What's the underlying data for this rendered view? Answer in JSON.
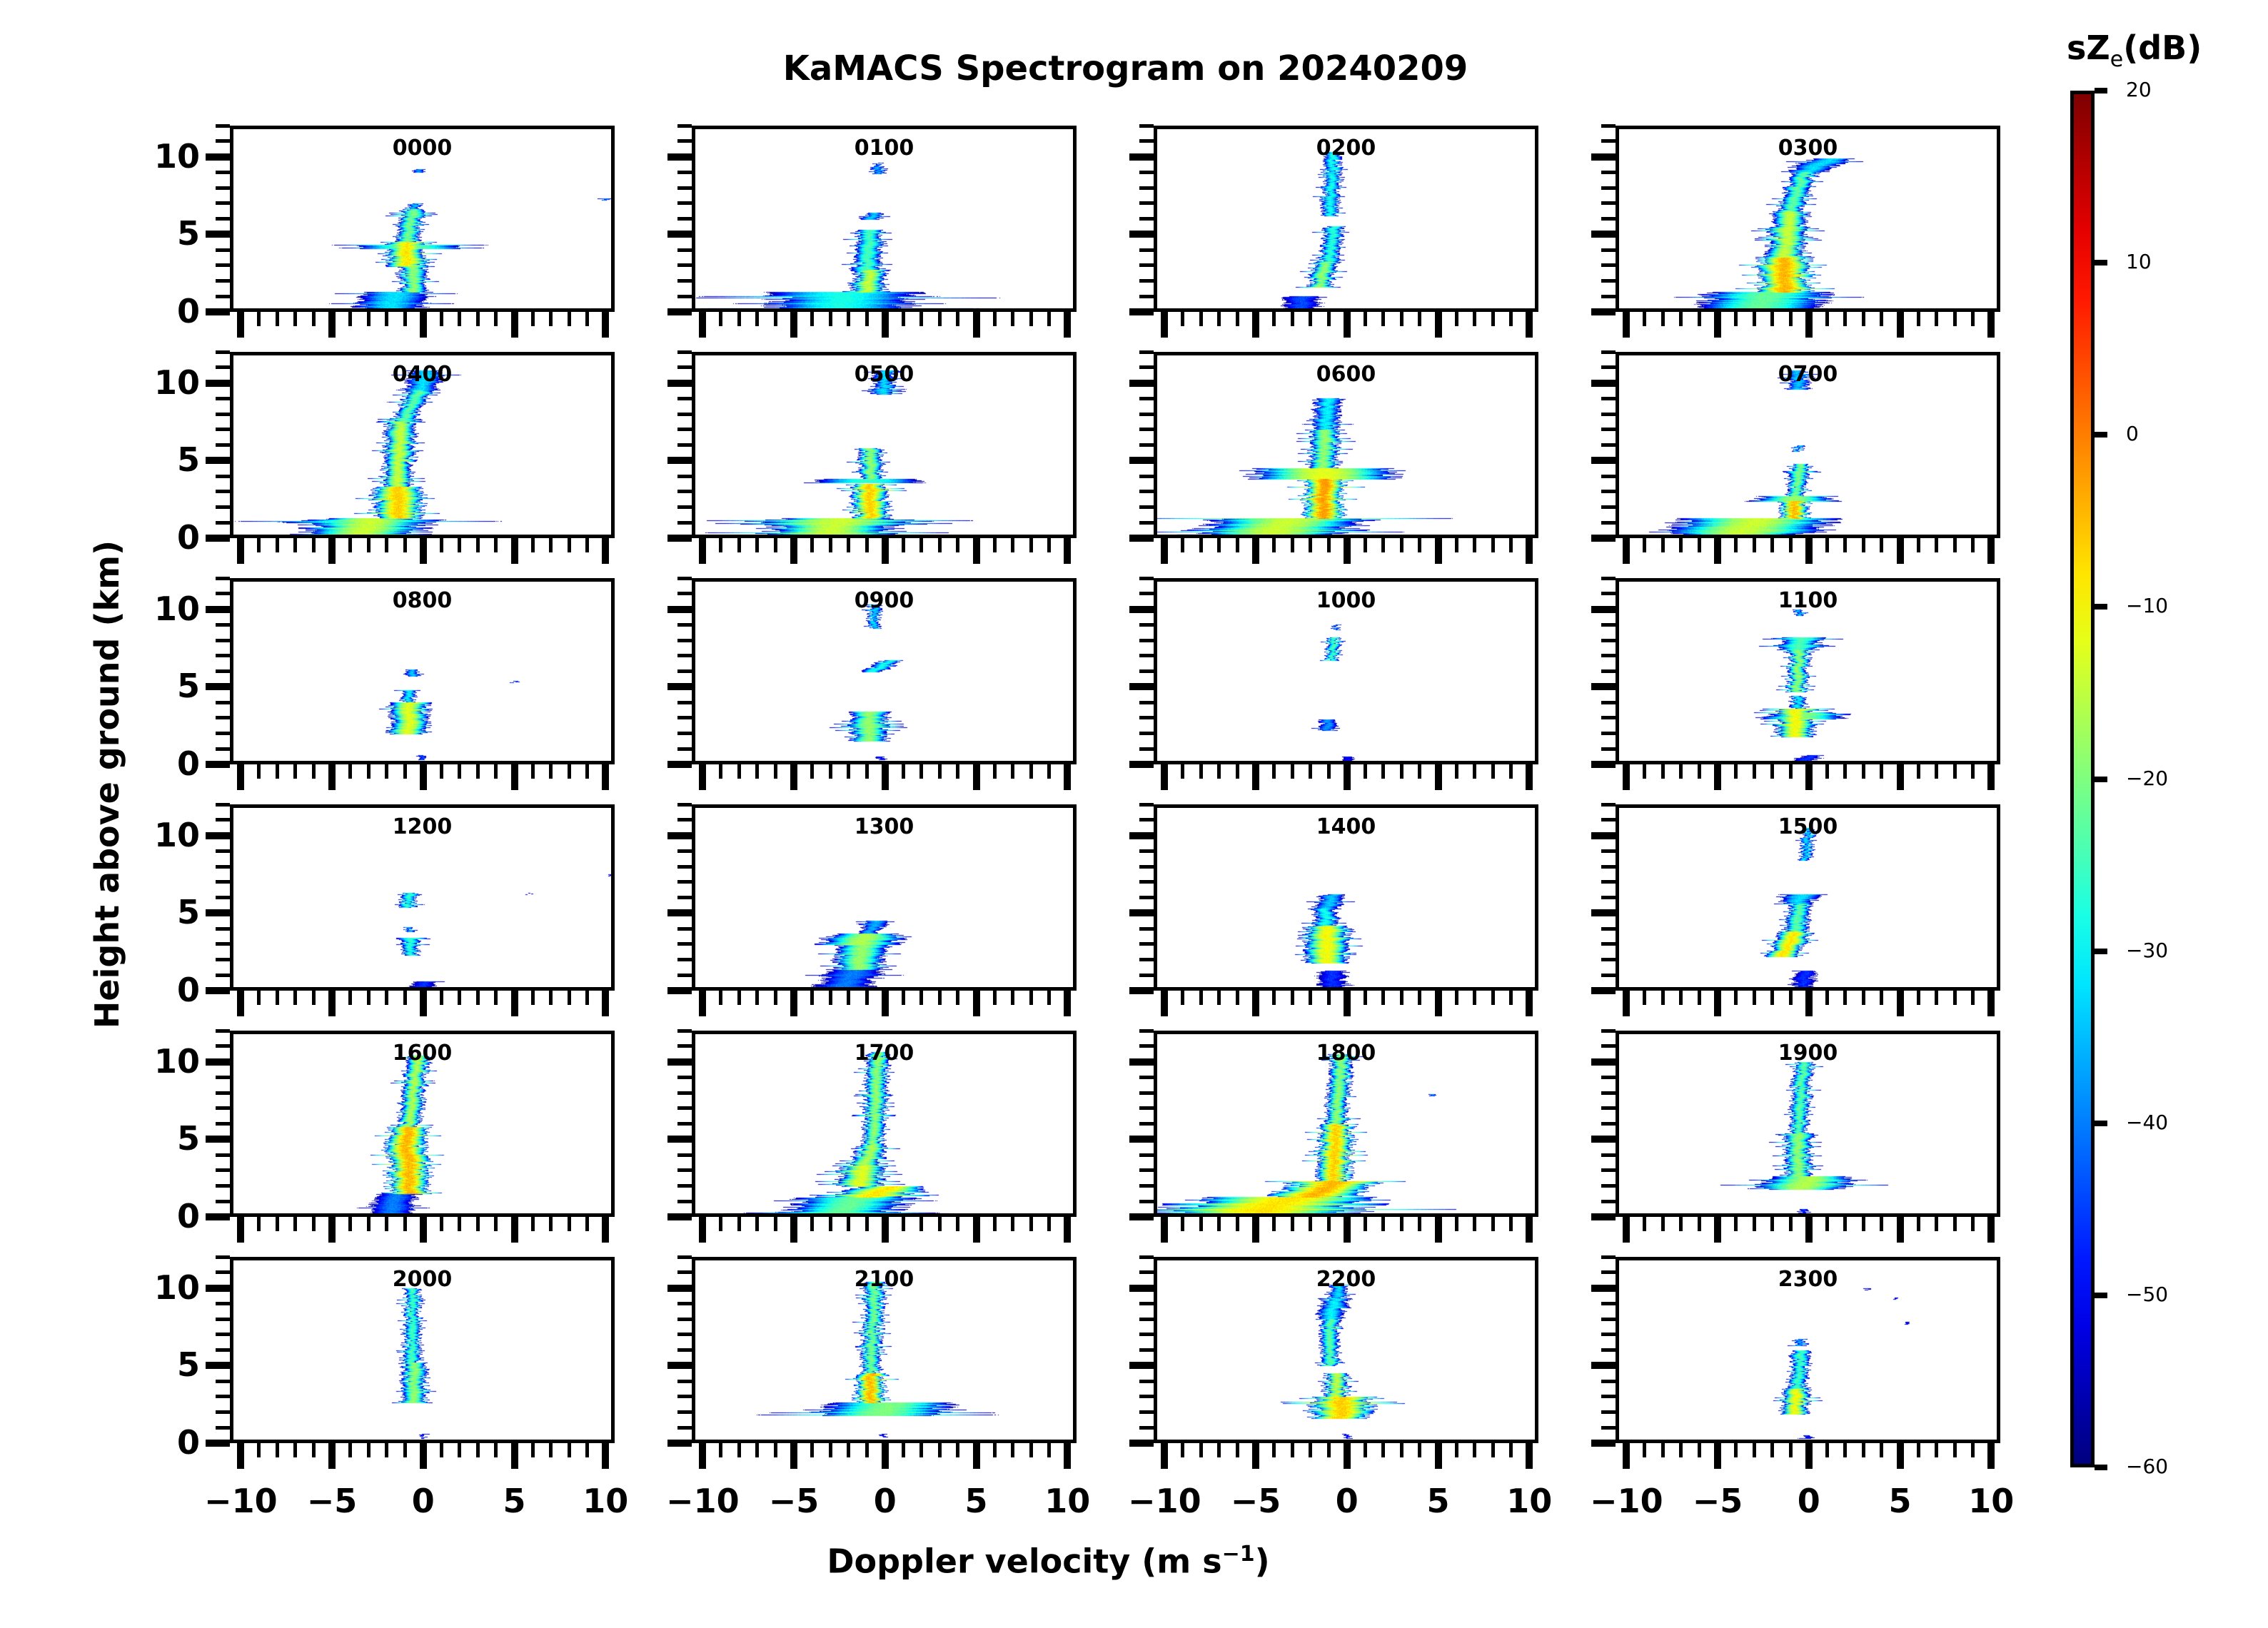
{
  "chart_data": {
    "type": "heatmap",
    "title": "KaMACS Spectrogram on 20240209",
    "xlabel": "Doppler velocity (m s",
    "xlabel_superscript": "−1",
    "xlabel_close": ")",
    "ylabel": "Height above ground (km)",
    "xlim": [
      -10.6,
      10.5
    ],
    "ylim": [
      0,
      12
    ],
    "x_major_ticks": [
      -10,
      -5,
      0,
      5,
      10
    ],
    "x_tick_labels": [
      "−10",
      "−5",
      "0",
      "5",
      "10"
    ],
    "x_minor_step": 1,
    "y_major_ticks": [
      0,
      5,
      10
    ],
    "y_tick_labels": [
      "0",
      "5",
      "10"
    ],
    "y_minor_step": 1,
    "grid": false,
    "layout": "6 rows x 4 columns",
    "colorbar": {
      "title": "sZ",
      "title_sub": "e",
      "title_suffix": "(dB)",
      "colormap": "jet",
      "range": [
        -60,
        20
      ],
      "ticks": [
        20,
        10,
        0,
        -10,
        -20,
        -30,
        -40,
        -50,
        -60
      ],
      "tick_labels": [
        "20",
        "10",
        "0",
        "−10",
        "−20",
        "−30",
        "−40",
        "−50",
        "−60"
      ],
      "placement": "right"
    },
    "panels": [
      {
        "label": "0000",
        "segments": [
          [
            9.0,
            9.2,
            -0.2,
            -0.2,
            0.3,
            -38
          ],
          [
            0.2,
            1.3,
            -2.0,
            -1.5,
            1.6,
            -32
          ],
          [
            1.3,
            3.0,
            -0.5,
            -0.6,
            0.5,
            -18
          ],
          [
            3.0,
            4.5,
            -0.9,
            -0.9,
            0.7,
            -8
          ],
          [
            4.1,
            4.3,
            -0.8,
            -0.8,
            1.9,
            -22
          ],
          [
            4.5,
            6.6,
            -0.9,
            -0.6,
            0.45,
            -20
          ],
          [
            6.6,
            7.0,
            -0.6,
            -0.4,
            0.3,
            -34
          ],
          [
            7.2,
            7.3,
            10.0,
            10.0,
            0.2,
            -40
          ]
        ]
      },
      {
        "label": "0100",
        "segments": [
          [
            0.0,
            1.3,
            -2.6,
            -2.2,
            3.2,
            -28
          ],
          [
            1.0,
            1.3,
            -3.6,
            -2.0,
            2.6,
            -30
          ],
          [
            1.3,
            2.7,
            -1.0,
            -0.8,
            0.6,
            -14
          ],
          [
            2.7,
            5.3,
            -1.0,
            -0.8,
            0.5,
            -24
          ],
          [
            6.0,
            6.4,
            -0.8,
            -0.6,
            0.4,
            -34
          ],
          [
            8.9,
            9.4,
            -0.4,
            -0.4,
            0.3,
            -36
          ],
          [
            9.4,
            9.6,
            -0.4,
            -0.4,
            0.15,
            -42
          ]
        ]
      },
      {
        "label": "0200",
        "segments": [
          [
            0.0,
            1.0,
            -2.6,
            -2.4,
            1.1,
            -44
          ],
          [
            1.6,
            3.2,
            -1.5,
            -1.2,
            0.45,
            -18
          ],
          [
            3.2,
            5.5,
            -1.0,
            -0.7,
            0.4,
            -26
          ],
          [
            6.2,
            10.3,
            -0.9,
            -0.8,
            0.35,
            -28
          ]
        ]
      },
      {
        "label": "0300",
        "segments": [
          [
            0.1,
            1.3,
            -2.8,
            -2.2,
            2.6,
            -22
          ],
          [
            1.3,
            3.5,
            -1.4,
            -1.3,
            0.9,
            -4
          ],
          [
            3.5,
            6.5,
            -1.3,
            -1.0,
            0.65,
            -14
          ],
          [
            6.5,
            9.0,
            -1.0,
            -0.3,
            0.5,
            -22
          ],
          [
            9.0,
            9.9,
            -0.3,
            1.3,
            1.0,
            -32
          ]
        ]
      },
      {
        "label": "0400",
        "segments": [
          [
            0.0,
            1.3,
            -3.5,
            -2.8,
            2.2,
            -14
          ],
          [
            1.0,
            1.2,
            -3.8,
            -2.5,
            2.9,
            -24
          ],
          [
            1.3,
            3.3,
            -1.4,
            -1.4,
            0.9,
            -6
          ],
          [
            3.3,
            7.5,
            -1.5,
            -1.2,
            0.55,
            -14
          ],
          [
            7.5,
            9.5,
            -1.2,
            -0.2,
            0.45,
            -22
          ],
          [
            9.5,
            10.8,
            -0.2,
            0.2,
            0.8,
            -32
          ]
        ]
      },
      {
        "label": "0500",
        "segments": [
          [
            0.0,
            1.3,
            -3.2,
            -2.6,
            2.4,
            -14
          ],
          [
            1.0,
            1.2,
            -3.8,
            -2.0,
            3.2,
            -26
          ],
          [
            1.3,
            3.5,
            -0.8,
            -0.8,
            0.6,
            -6
          ],
          [
            3.6,
            3.8,
            -1.0,
            -1.0,
            2.2,
            -26
          ],
          [
            3.8,
            5.8,
            -0.8,
            -0.8,
            0.45,
            -18
          ],
          [
            9.3,
            10.8,
            -0.1,
            0.0,
            0.45,
            -32
          ]
        ]
      },
      {
        "label": "0600",
        "segments": [
          [
            0.0,
            1.3,
            -4.5,
            -3.0,
            3.0,
            -14
          ],
          [
            1.3,
            3.8,
            -1.3,
            -1.3,
            0.7,
            -2
          ],
          [
            3.8,
            4.5,
            -1.3,
            -1.3,
            2.6,
            -12
          ],
          [
            4.5,
            7.0,
            -1.3,
            -1.2,
            0.55,
            -18
          ],
          [
            7.0,
            9.0,
            -1.2,
            -1.0,
            0.6,
            -30
          ]
        ]
      },
      {
        "label": "0700",
        "segments": [
          [
            0.0,
            1.3,
            -4.3,
            -2.6,
            2.8,
            -14
          ],
          [
            1.3,
            2.4,
            -0.8,
            -0.8,
            0.5,
            -4
          ],
          [
            2.4,
            2.7,
            -0.8,
            -0.8,
            1.6,
            -18
          ],
          [
            2.7,
            4.8,
            -0.7,
            -0.5,
            0.35,
            -20
          ],
          [
            5.6,
            6.0,
            -0.6,
            -0.6,
            0.2,
            -34
          ],
          [
            9.6,
            10.8,
            -0.6,
            -0.6,
            0.45,
            -34
          ]
        ]
      },
      {
        "label": "0800",
        "segments": [
          [
            0.3,
            0.6,
            0.0,
            0.0,
            0.2,
            -44
          ],
          [
            2.0,
            4.0,
            -0.8,
            -0.8,
            0.7,
            -12
          ],
          [
            4.0,
            4.8,
            -0.8,
            -0.8,
            0.3,
            -30
          ],
          [
            5.7,
            6.1,
            -0.6,
            -0.6,
            0.3,
            -34
          ],
          [
            5.3,
            5.4,
            5.0,
            5.0,
            0.2,
            -44
          ]
        ]
      },
      {
        "label": "0900",
        "segments": [
          [
            0.3,
            0.5,
            -0.2,
            -0.2,
            0.3,
            -48
          ],
          [
            1.5,
            3.4,
            -0.9,
            -0.8,
            0.7,
            -18
          ],
          [
            6.0,
            6.7,
            -0.7,
            0.3,
            0.5,
            -28
          ],
          [
            8.8,
            10.3,
            -0.6,
            -0.6,
            0.25,
            -32
          ]
        ]
      },
      {
        "label": "1000",
        "segments": [
          [
            0.2,
            0.5,
            0.0,
            0.0,
            0.4,
            -50
          ],
          [
            2.2,
            2.9,
            -1.1,
            -1.0,
            0.4,
            -38
          ],
          [
            6.7,
            8.2,
            -0.9,
            -0.7,
            0.25,
            -24
          ],
          [
            8.7,
            9.0,
            -0.6,
            -0.6,
            0.15,
            -40
          ]
        ]
      },
      {
        "label": "1100",
        "segments": [
          [
            0.2,
            0.6,
            -0.5,
            0.2,
            0.7,
            -46
          ],
          [
            1.8,
            3.6,
            -0.8,
            -0.7,
            0.7,
            -10
          ],
          [
            3.0,
            3.3,
            -0.4,
            0.0,
            1.6,
            -20
          ],
          [
            3.6,
            4.4,
            -0.6,
            -0.6,
            0.3,
            -30
          ],
          [
            4.7,
            7.4,
            -0.7,
            -0.5,
            0.35,
            -18
          ],
          [
            7.4,
            8.2,
            -0.6,
            -0.4,
            0.8,
            -24
          ],
          [
            9.6,
            10.0,
            -0.5,
            -0.5,
            0.2,
            -34
          ]
        ]
      },
      {
        "label": "1200",
        "segments": [
          [
            0.0,
            0.6,
            -0.4,
            0.2,
            0.9,
            -46
          ],
          [
            2.3,
            3.4,
            -0.7,
            -0.7,
            0.35,
            -26
          ],
          [
            3.8,
            4.1,
            -0.8,
            -0.8,
            0.2,
            -36
          ],
          [
            5.4,
            6.3,
            -0.9,
            -0.7,
            0.3,
            -26
          ],
          [
            6.2,
            6.3,
            5.8,
            5.8,
            0.1,
            -50
          ],
          [
            7.4,
            7.5,
            10.3,
            10.3,
            0.1,
            -50
          ]
        ]
      },
      {
        "label": "1300",
        "segments": [
          [
            0.0,
            1.4,
            -2.5,
            -1.6,
            1.6,
            -40
          ],
          [
            1.4,
            3.0,
            -1.5,
            -1.2,
            0.9,
            -18
          ],
          [
            3.0,
            3.7,
            -1.4,
            -0.9,
            1.4,
            -16
          ],
          [
            3.7,
            4.5,
            -0.9,
            -0.5,
            0.5,
            -36
          ]
        ]
      },
      {
        "label": "1400",
        "segments": [
          [
            0.0,
            1.3,
            -0.8,
            -0.8,
            0.9,
            -46
          ],
          [
            1.8,
            4.2,
            -1.1,
            -1.1,
            0.8,
            -10
          ],
          [
            4.2,
            5.3,
            -1.1,
            -1.2,
            0.5,
            -28
          ],
          [
            5.3,
            6.2,
            -1.2,
            -0.7,
            0.6,
            -34
          ]
        ]
      },
      {
        "label": "1500",
        "segments": [
          [
            0.1,
            1.3,
            -0.4,
            -0.2,
            0.7,
            -46
          ],
          [
            2.2,
            3.8,
            -1.5,
            -0.8,
            0.6,
            -8
          ],
          [
            3.8,
            5.6,
            -0.8,
            -0.5,
            0.45,
            -22
          ],
          [
            5.6,
            6.2,
            -0.7,
            -0.4,
            0.8,
            -32
          ],
          [
            8.4,
            10.5,
            -0.2,
            0.0,
            0.25,
            -32
          ]
        ]
      },
      {
        "label": "1600",
        "segments": [
          [
            0.2,
            1.5,
            -1.8,
            -1.4,
            1.2,
            -40
          ],
          [
            1.5,
            4.0,
            -0.8,
            -0.8,
            0.7,
            -4
          ],
          [
            4.0,
            5.8,
            -1.0,
            -0.8,
            0.7,
            -4
          ],
          [
            5.8,
            10.4,
            -0.8,
            -0.3,
            0.4,
            -16
          ]
        ]
      },
      {
        "label": "1700",
        "segments": [
          [
            0.0,
            1.3,
            -2.8,
            -1.5,
            2.2,
            -22
          ],
          [
            1.3,
            2.0,
            -1.0,
            0.5,
            1.4,
            -8
          ],
          [
            2.0,
            3.3,
            -1.4,
            -1.2,
            0.8,
            -12
          ],
          [
            3.3,
            4.6,
            -1.2,
            -0.6,
            0.55,
            -16
          ],
          [
            4.6,
            10.6,
            -0.7,
            -0.4,
            0.4,
            -18
          ]
        ]
      },
      {
        "label": "1800",
        "segments": [
          [
            0.0,
            1.3,
            -5.5,
            -3.0,
            3.6,
            -8
          ],
          [
            1.3,
            2.3,
            -2.0,
            -0.5,
            1.6,
            -4
          ],
          [
            2.3,
            6.0,
            -0.8,
            -0.6,
            0.6,
            -6
          ],
          [
            6.0,
            10.5,
            -0.6,
            -0.3,
            0.4,
            -18
          ],
          [
            7.8,
            7.9,
            4.6,
            4.6,
            0.2,
            -40
          ]
        ]
      },
      {
        "label": "1900",
        "segments": [
          [
            0.2,
            0.5,
            -0.3,
            -0.3,
            0.3,
            -46
          ],
          [
            1.8,
            2.6,
            -0.5,
            0.1,
            1.6,
            -16
          ],
          [
            2.6,
            5.4,
            -0.6,
            -0.6,
            0.5,
            -18
          ],
          [
            5.4,
            10.0,
            -0.6,
            -0.3,
            0.35,
            -22
          ]
        ]
      },
      {
        "label": "2000",
        "segments": [
          [
            0.3,
            0.6,
            0.0,
            0.0,
            0.15,
            -48
          ],
          [
            2.6,
            5.2,
            -0.5,
            -0.5,
            0.45,
            -18
          ],
          [
            5.2,
            10.0,
            -0.6,
            -0.6,
            0.3,
            -24
          ]
        ]
      },
      {
        "label": "2100",
        "segments": [
          [
            0.4,
            0.6,
            -0.1,
            -0.1,
            0.2,
            -48
          ],
          [
            1.8,
            2.6,
            -0.4,
            0.3,
            2.4,
            -20
          ],
          [
            2.6,
            4.5,
            -0.8,
            -0.8,
            0.5,
            -4
          ],
          [
            4.5,
            10.4,
            -0.8,
            -0.6,
            0.35,
            -20
          ]
        ]
      },
      {
        "label": "2200",
        "segments": [
          [
            0.3,
            0.6,
            0.0,
            0.0,
            0.2,
            -48
          ],
          [
            1.6,
            3.0,
            -0.4,
            -0.3,
            1.1,
            -6
          ],
          [
            3.0,
            4.5,
            -0.6,
            -0.6,
            0.4,
            -14
          ],
          [
            5.0,
            8.0,
            -1.0,
            -0.9,
            0.35,
            -22
          ],
          [
            8.0,
            9.3,
            -1.0,
            -0.6,
            0.6,
            -30
          ],
          [
            9.3,
            10.2,
            -0.6,
            -0.4,
            0.4,
            -32
          ]
        ]
      },
      {
        "label": "2300",
        "segments": [
          [
            0.3,
            0.5,
            -0.1,
            -0.1,
            0.3,
            -48
          ],
          [
            1.9,
            3.5,
            -0.8,
            -0.7,
            0.45,
            -10
          ],
          [
            3.5,
            6.0,
            -0.7,
            -0.4,
            0.35,
            -24
          ],
          [
            6.3,
            6.7,
            -0.5,
            -0.5,
            0.25,
            -36
          ],
          [
            9.9,
            10.0,
            3.2,
            3.2,
            0.15,
            -50
          ],
          [
            9.3,
            9.4,
            4.8,
            4.8,
            0.15,
            -50
          ],
          [
            7.7,
            7.8,
            5.4,
            5.4,
            0.15,
            -50
          ]
        ]
      }
    ],
    "segment_fields": [
      "height_bottom_km",
      "height_top_km",
      "velocity_at_bottom_ms",
      "velocity_at_top_ms",
      "half_width_ms",
      "peak_sZe_dB"
    ]
  }
}
